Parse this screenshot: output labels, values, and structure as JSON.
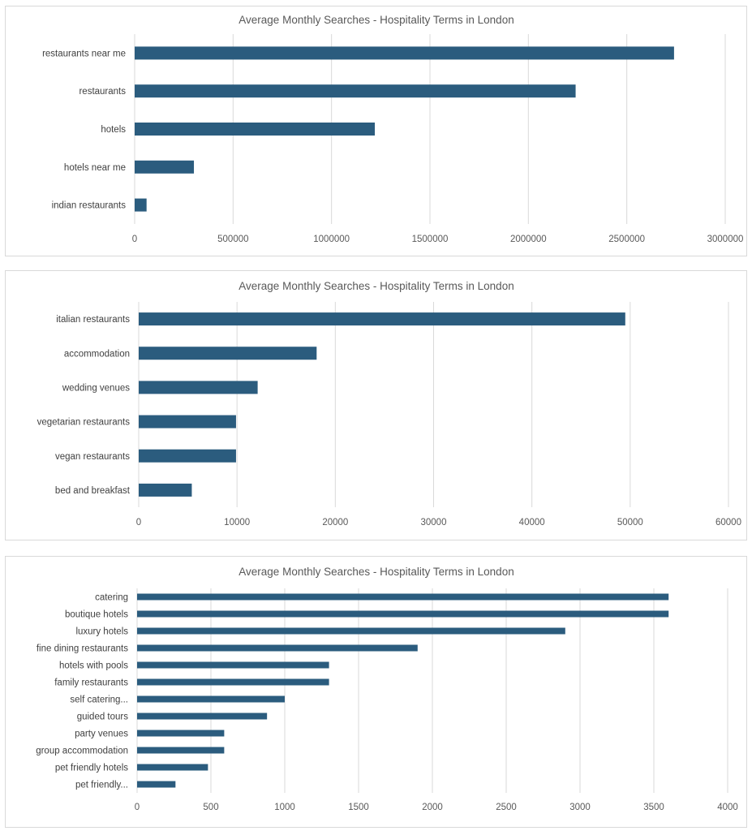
{
  "chart_data": [
    {
      "type": "bar",
      "orientation": "horizontal",
      "title": "Average Monthly Searches - Hospitality Terms in London",
      "xlabel": "",
      "ylabel": "",
      "xlim": [
        0,
        3000000
      ],
      "xticks": [
        "0",
        "500000",
        "1000000",
        "1500000",
        "2000000",
        "2500000",
        "3000000"
      ],
      "categories": [
        "restaurants near me",
        "restaurants",
        "hotels",
        "hotels near me",
        "indian restaurants"
      ],
      "values": [
        2740000,
        2240000,
        1220000,
        301000,
        60500
      ],
      "color": "#2b5c7e",
      "grid": true,
      "legend": "none"
    },
    {
      "type": "bar",
      "orientation": "horizontal",
      "title": "Average Monthly Searches - Hospitality Terms in London",
      "xlabel": "",
      "ylabel": "",
      "xlim": [
        0,
        60000
      ],
      "xticks": [
        "0",
        "10000",
        "20000",
        "30000",
        "40000",
        "50000",
        "60000"
      ],
      "categories": [
        "italian restaurants",
        "accommodation",
        "wedding venues",
        "vegetarian restaurants",
        "vegan restaurants",
        "bed and breakfast"
      ],
      "values": [
        49500,
        18100,
        12100,
        9900,
        9900,
        5400
      ],
      "color": "#2b5c7e",
      "grid": true,
      "legend": "none"
    },
    {
      "type": "bar",
      "orientation": "horizontal",
      "title": "Average Monthly Searches - Hospitality Terms in London",
      "xlabel": "",
      "ylabel": "",
      "xlim": [
        0,
        4000
      ],
      "xticks": [
        "0",
        "500",
        "1000",
        "1500",
        "2000",
        "2500",
        "3000",
        "3500",
        "4000"
      ],
      "categories": [
        "catering",
        "boutique hotels",
        "luxury hotels",
        "fine dining restaurants",
        "hotels with pools",
        "family restaurants",
        "self catering...",
        "guided tours",
        "party venues",
        "group accommodation",
        "pet friendly hotels",
        "pet friendly..."
      ],
      "values": [
        3600,
        3600,
        2900,
        1900,
        1300,
        1300,
        1000,
        880,
        590,
        590,
        480,
        260
      ],
      "color": "#2b5c7e",
      "grid": true,
      "legend": "none"
    }
  ]
}
